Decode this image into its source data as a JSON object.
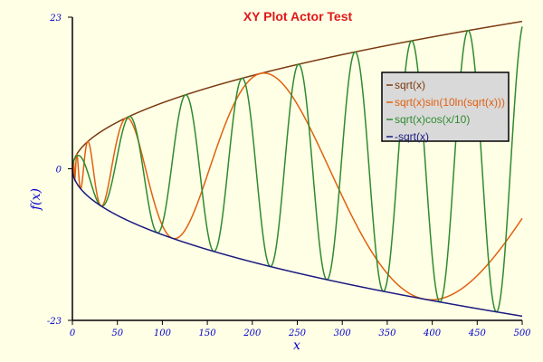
{
  "chart_data": {
    "type": "line",
    "title": "XY Plot Actor Test",
    "xlabel": "x",
    "ylabel": "f(x)",
    "xlim": [
      0,
      500
    ],
    "ylim": [
      -23,
      23
    ],
    "xticks": [
      "0",
      "50",
      "100",
      "150",
      "200",
      "250",
      "300",
      "350",
      "400",
      "450",
      "500"
    ],
    "yticks": [
      "23",
      "0",
      "-23"
    ],
    "grid": false,
    "legend_position": "top-right",
    "series": [
      {
        "name": "sqrt(x)",
        "color": "#7a3a10",
        "formula": "sqrt"
      },
      {
        "name": "sqrt(x)sin(10ln(sqrt(x)))",
        "color": "#e06010",
        "formula": "sqrtsin"
      },
      {
        "name": "sqrt(x)cos(x/10)",
        "color": "#2f8a2f",
        "formula": "sqrtcos"
      },
      {
        "name": "-sqrt(x)",
        "color": "#1a1a80",
        "formula": "negsqrt"
      }
    ]
  }
}
